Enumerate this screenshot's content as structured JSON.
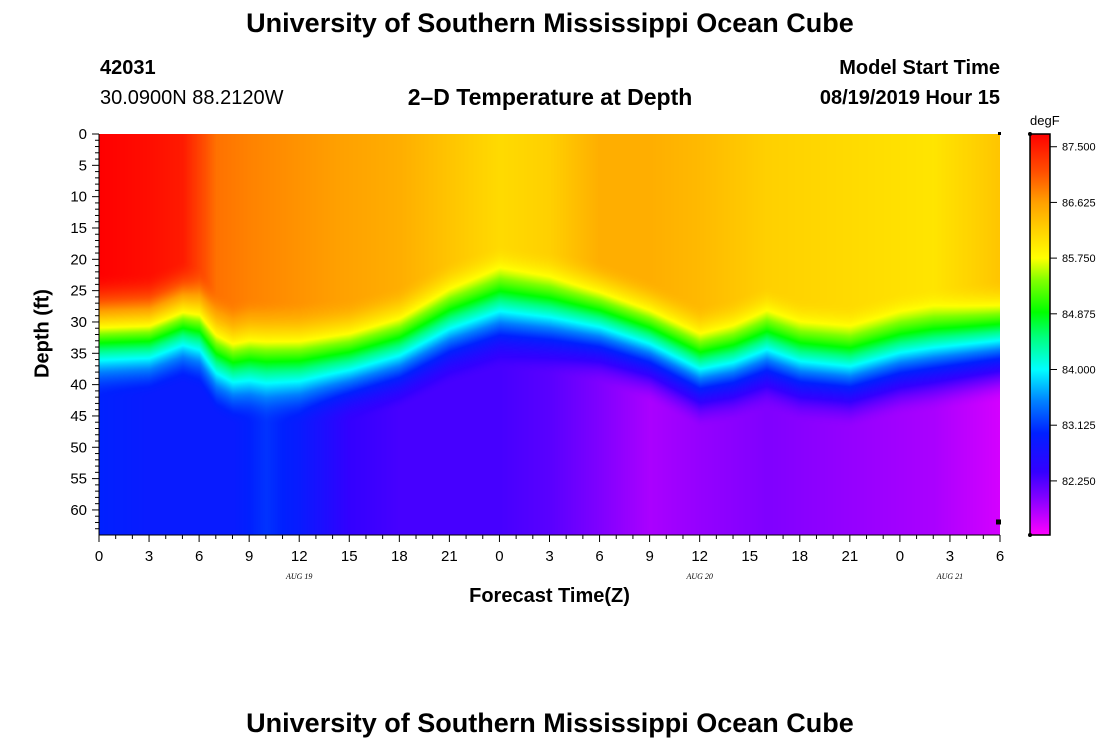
{
  "header": {
    "title": "University of Southern Mississippi Ocean Cube",
    "station_id": "42031",
    "coordinates": "30.0900N 88.2120W",
    "plot_title": "2–D Temperature at Depth",
    "model_start_label": "Model Start Time",
    "model_start_value": "08/19/2019 Hour 15"
  },
  "footer": {
    "title": "University of Southern Mississippi Ocean Cube"
  },
  "chart_data": {
    "type": "heatmap",
    "title": "2–D Temperature at Depth",
    "xlabel": "Forecast Time(Z)",
    "ylabel": "Depth (ft)",
    "x_ticks": [
      "0",
      "3",
      "6",
      "9",
      "12",
      "15",
      "18",
      "21",
      "0",
      "3",
      "6",
      "9",
      "12",
      "15",
      "18",
      "21",
      "0",
      "3",
      "6"
    ],
    "x_date_labels": [
      {
        "label": "AUG 19",
        "x_hours": 12
      },
      {
        "label": "AUG 20",
        "x_hours": 36
      },
      {
        "label": "AUG 21",
        "x_hours": 51
      }
    ],
    "x_range_hours": [
      0,
      54
    ],
    "y_ticks": [
      "0",
      "5",
      "10",
      "15",
      "20",
      "25",
      "30",
      "35",
      "40",
      "45",
      "50",
      "55",
      "60"
    ],
    "y_range_ft": [
      0,
      64
    ],
    "colorbar": {
      "unit": "degF",
      "labels": [
        "87.500",
        "86.625",
        "85.750",
        "84.875",
        "84.000",
        "83.125",
        "82.250"
      ],
      "label_values": [
        87.5,
        86.625,
        85.75,
        84.875,
        84.0,
        83.125,
        82.25
      ],
      "range": [
        81.4,
        87.7
      ],
      "stops": [
        {
          "v": 81.4,
          "c": "#ff00ff"
        },
        {
          "v": 82.0,
          "c": "#8000ff"
        },
        {
          "v": 82.4,
          "c": "#3300ff"
        },
        {
          "v": 83.0,
          "c": "#0020ff"
        },
        {
          "v": 83.5,
          "c": "#0080ff"
        },
        {
          "v": 84.0,
          "c": "#00ffff"
        },
        {
          "v": 84.5,
          "c": "#00ff80"
        },
        {
          "v": 84.9,
          "c": "#00ff00"
        },
        {
          "v": 85.4,
          "c": "#80ff00"
        },
        {
          "v": 85.75,
          "c": "#ffff00"
        },
        {
          "v": 86.2,
          "c": "#ffd000"
        },
        {
          "v": 86.625,
          "c": "#ffa000"
        },
        {
          "v": 87.1,
          "c": "#ff5000"
        },
        {
          "v": 87.7,
          "c": "#ff0000"
        }
      ]
    },
    "thermocline_depth_ft": {
      "hours": [
        0,
        3,
        5,
        6,
        7,
        8,
        9,
        12,
        15,
        18,
        21,
        24,
        27,
        30,
        33,
        36,
        38,
        40,
        42,
        45,
        48,
        51,
        54
      ],
      "depth": [
        30,
        30,
        28,
        29,
        33,
        34.5,
        34,
        34.5,
        34,
        32,
        28,
        25.5,
        26.5,
        28,
        31,
        35,
        34,
        32,
        34,
        35,
        33,
        32,
        31
      ]
    },
    "surface_temp_degF": {
      "hours": [
        0,
        3,
        5,
        6,
        7,
        9,
        12,
        15,
        18,
        21,
        24,
        27,
        30,
        33,
        36,
        40,
        45,
        50,
        54
      ],
      "temp": [
        87.7,
        87.6,
        87.5,
        87.2,
        86.9,
        86.8,
        86.7,
        86.6,
        86.5,
        86.3,
        86.1,
        86.2,
        86.5,
        86.5,
        86.4,
        86.2,
        86.1,
        86.0,
        86.3
      ]
    },
    "bottom_temp_degF": {
      "hours": [
        0,
        3,
        6,
        8,
        10,
        12,
        15,
        18,
        21,
        24,
        27,
        30,
        33,
        36,
        40,
        45,
        50,
        54
      ],
      "temp": [
        83.0,
        82.9,
        82.9,
        82.9,
        83.1,
        82.9,
        82.4,
        82.3,
        82.3,
        82.3,
        82.2,
        82.0,
        81.8,
        81.9,
        82.0,
        81.9,
        81.8,
        81.6
      ]
    }
  }
}
